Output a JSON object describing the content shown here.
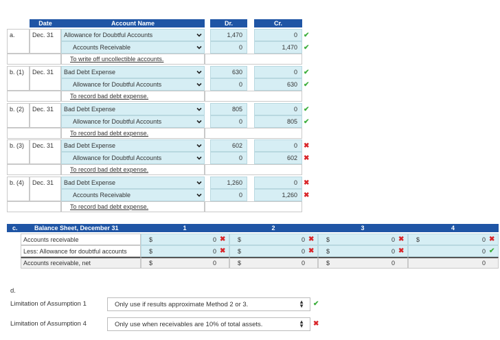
{
  "journal": {
    "headers": {
      "date": "Date",
      "account": "Account Name",
      "dr": "Dr.",
      "cr": "Cr."
    },
    "entries": [
      {
        "label": "a.",
        "date": "Dec. 31",
        "debit_account": "Allowance for Doubtful Accounts",
        "credit_account": "Accounts Receivable",
        "dr1": "1,470",
        "cr1": "0",
        "mark1": "check",
        "dr2": "0",
        "cr2": "1,470",
        "mark2": "check",
        "memo": "To write off uncollectible accounts."
      },
      {
        "label": "b. (1)",
        "date": "Dec. 31",
        "debit_account": "Bad Debt Expense",
        "credit_account": "Allowance for Doubtful Accounts",
        "dr1": "630",
        "cr1": "0",
        "mark1": "check",
        "dr2": "0",
        "cr2": "630",
        "mark2": "check",
        "memo": "To record bad debt expense."
      },
      {
        "label": "b. (2)",
        "date": "Dec. 31",
        "debit_account": "Bad Debt Expense",
        "credit_account": "Allowance for Doubtful Accounts",
        "dr1": "805",
        "cr1": "0",
        "mark1": "check",
        "dr2": "0",
        "cr2": "805",
        "mark2": "check",
        "memo": "To record bad debt expense."
      },
      {
        "label": "b. (3)",
        "date": "Dec. 31",
        "debit_account": "Bad Debt Expense",
        "credit_account": "Allowance for Doubtful Accounts",
        "dr1": "602",
        "cr1": "0",
        "mark1": "x",
        "dr2": "0",
        "cr2": "602",
        "mark2": "x",
        "memo": "To record bad debt expense."
      },
      {
        "label": "b. (4)",
        "date": "Dec. 31",
        "debit_account": "Bad Debt Expense",
        "credit_account": "Accounts Receivable",
        "dr1": "1,260",
        "cr1": "0",
        "mark1": "x",
        "dr2": "0",
        "cr2": "1,260",
        "mark2": "x",
        "memo": "To record bad debt expense."
      }
    ]
  },
  "balance_sheet": {
    "section_label": "c.",
    "title": "Balance Sheet, December 31",
    "columns": [
      "1",
      "2",
      "3",
      "4"
    ],
    "rows": [
      {
        "label": "Accounts receivable",
        "cells": [
          {
            "sym": "$",
            "val": "0",
            "mark": "x"
          },
          {
            "sym": "$",
            "val": "0",
            "mark": "x"
          },
          {
            "sym": "$",
            "val": "0",
            "mark": "x"
          },
          {
            "sym": "$",
            "val": "0",
            "mark": "x"
          }
        ]
      },
      {
        "label": "Less: Allowance for doubtful accounts",
        "cells": [
          {
            "sym": "$",
            "val": "0",
            "mark": "x"
          },
          {
            "sym": "$",
            "val": "0",
            "mark": "x"
          },
          {
            "sym": "$",
            "val": "0",
            "mark": "x"
          },
          {
            "sym": "",
            "val": "0",
            "mark": "check"
          }
        ]
      },
      {
        "label": "Accounts receivable, net",
        "cells": [
          {
            "sym": "$",
            "val": "0",
            "mark": ""
          },
          {
            "sym": "$",
            "val": "0",
            "mark": ""
          },
          {
            "sym": "$",
            "val": "0",
            "mark": ""
          },
          {
            "sym": "",
            "val": "0",
            "mark": ""
          }
        ]
      }
    ]
  },
  "part_d": {
    "label": "d.",
    "items": [
      {
        "label": "Limitation of Assumption 1",
        "value": "Only use if results approximate Method 2 or 3.",
        "mark": "check"
      },
      {
        "label": "Limitation of Assumption 4",
        "value": "Only use when receivables are 10% of total assets.",
        "mark": "x"
      }
    ]
  }
}
